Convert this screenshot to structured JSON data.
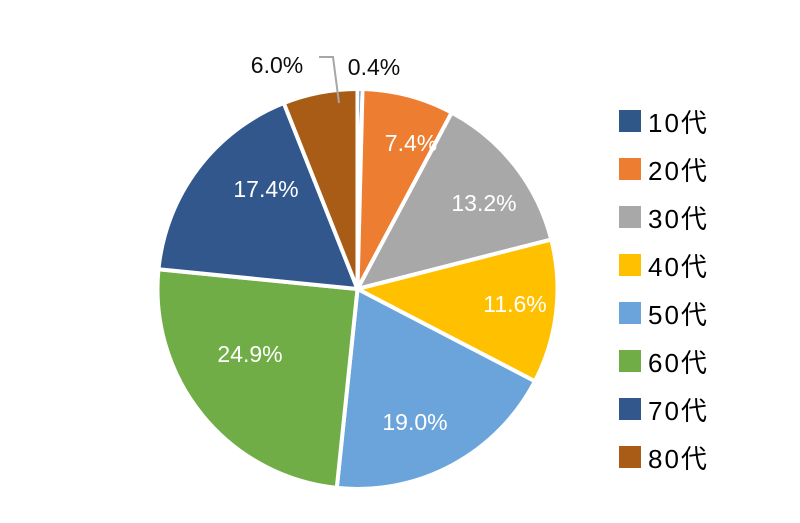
{
  "chart_data": {
    "type": "pie",
    "title": "",
    "categories": [
      "10代",
      "20代",
      "30代",
      "40代",
      "50代",
      "60代",
      "70代",
      "80代"
    ],
    "values": [
      0.4,
      7.4,
      13.2,
      11.6,
      19.0,
      24.9,
      17.4,
      6.0
    ],
    "data_labels": [
      "0.4%",
      "7.4%",
      "13.2%",
      "11.6%",
      "19.0%",
      "24.9%",
      "17.4%",
      "6.0%"
    ],
    "colors": [
      "#2F5788",
      "#ED7D31",
      "#A8A8A8",
      "#FFC000",
      "#6AA4DA",
      "#70AD47",
      "#31578C",
      "#A95C15"
    ],
    "label_placement": [
      "outside",
      "inside",
      "inside",
      "inside",
      "inside",
      "inside",
      "inside",
      "outside"
    ],
    "inside_label_color": "#FFFFFF",
    "outside_label_color": "#0D0D0D",
    "leader_line_color": "#A6A6A6",
    "slice_border_color": "#FFFFFF",
    "background": "#FFFFFF",
    "legend_position": "right",
    "start_angle_deg": 0,
    "direction": "clockwise",
    "grid": false
  }
}
